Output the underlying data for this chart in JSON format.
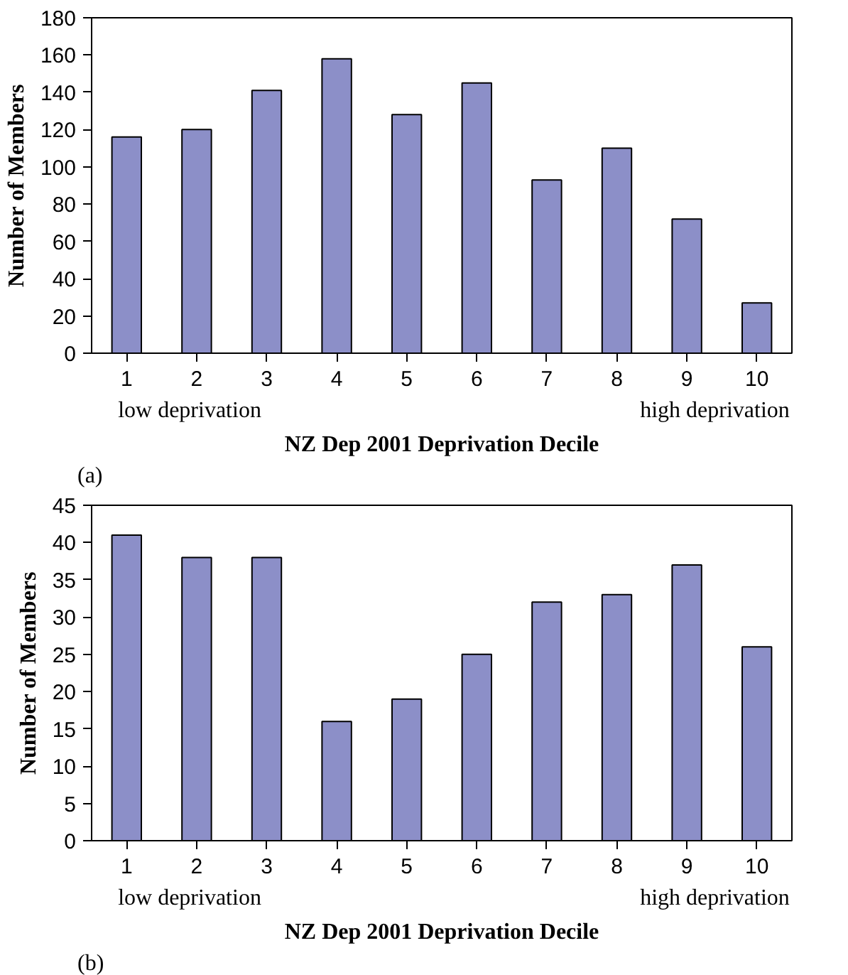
{
  "chart_data": [
    {
      "type": "bar",
      "xlabel": "NZ Dep 2001 Deprivation Decile",
      "ylabel": "Number of Members",
      "categories": [
        "1",
        "2",
        "3",
        "4",
        "5",
        "6",
        "7",
        "8",
        "9",
        "10"
      ],
      "values": [
        116,
        120,
        141,
        158,
        128,
        145,
        93,
        110,
        72,
        27
      ],
      "color": "#8c8fc8",
      "ylim": [
        0,
        180
      ],
      "yticks": [
        0,
        20,
        40,
        60,
        80,
        100,
        120,
        140,
        160,
        180
      ],
      "grid": false,
      "annotations": [
        "low deprivation",
        "high deprivation",
        "(a)"
      ]
    },
    {
      "type": "bar",
      "xlabel": "NZ Dep 2001 Deprivation Decile",
      "ylabel": "Number of Members",
      "categories": [
        "1",
        "2",
        "3",
        "4",
        "5",
        "6",
        "7",
        "8",
        "9",
        "10"
      ],
      "values": [
        41,
        38,
        38,
        16,
        19,
        25,
        32,
        33,
        37,
        26
      ],
      "color": "#8c8fc8",
      "ylim": [
        0,
        45
      ],
      "yticks": [
        0,
        5,
        10,
        15,
        20,
        25,
        30,
        35,
        40,
        45
      ],
      "grid": false,
      "annotations": [
        "low deprivation",
        "high deprivation",
        "(b)"
      ]
    }
  ]
}
